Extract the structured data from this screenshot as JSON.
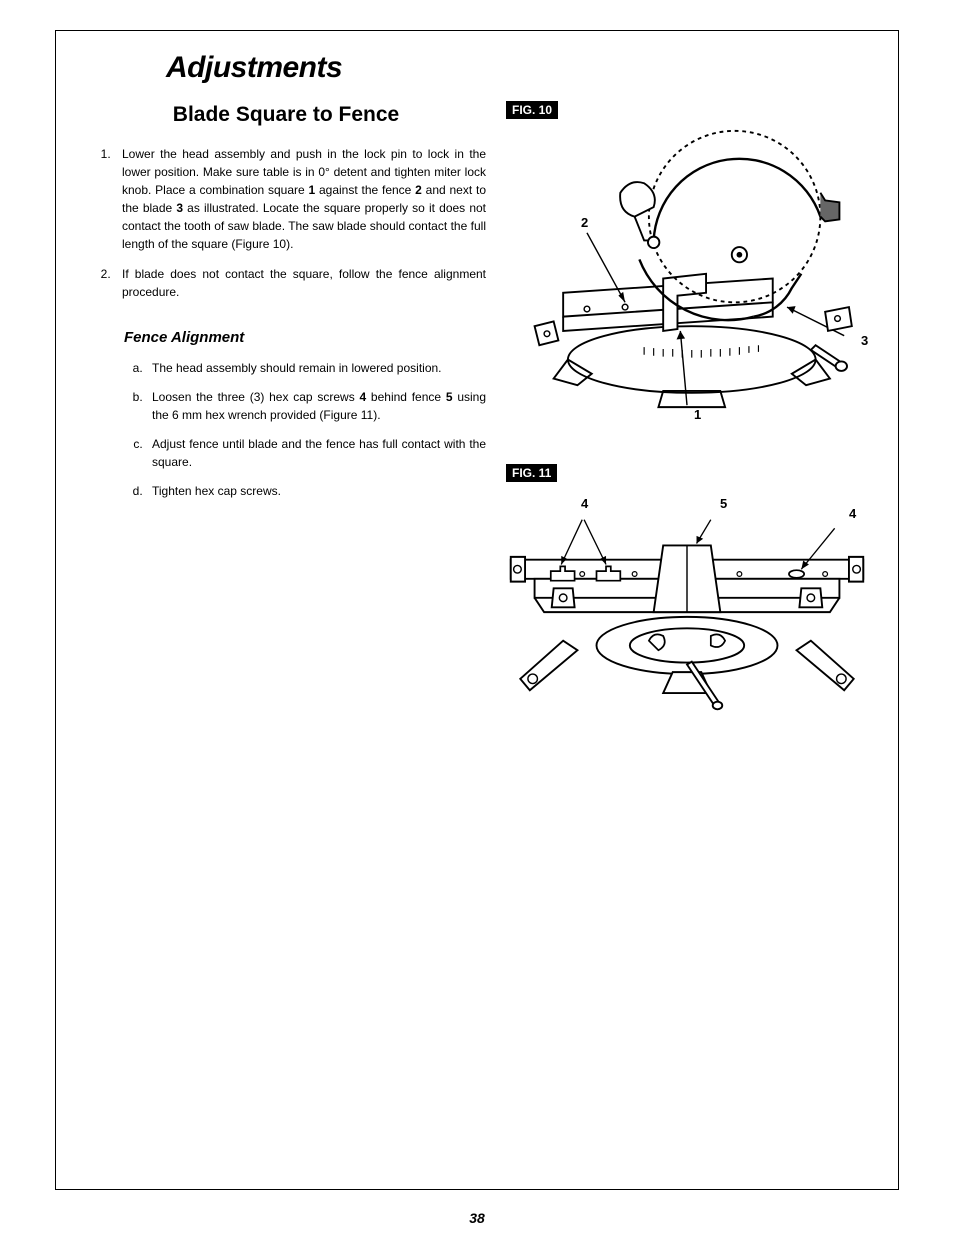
{
  "main_title": "Adjustments",
  "section_title": "Blade Square to Fence",
  "list_items": [
    "Lower the head assembly and push in the lock pin to lock in the lower position. Make sure table is in 0° detent and tighten miter lock knob. Place a combination square 1 against the fence 2 and next to the blade 3 as illustrated. Locate the square properly so it does not contact the tooth of saw blade. The saw blade should contact the full length of the square (Figure 10).",
    "If blade does not contact the square, follow the fence alignment procedure."
  ],
  "sub_title": "Fence Alignment",
  "sub_items": [
    "The head assembly should remain in lowered position.",
    "Loosen the three (3) hex cap screws 4 behind fence 5 using the 6 mm hex wrench provided (Figure 11).",
    "Adjust fence until blade and the fence has full contact with the square.",
    "Tighten hex cap screws."
  ],
  "fig10_label": "FIG. 10",
  "fig11_label": "FIG. 11",
  "fig10_callouts": {
    "c1": "1",
    "c2": "2",
    "c3": "3"
  },
  "fig11_callouts": {
    "c4a": "4",
    "c4b": "4",
    "c5": "5"
  },
  "page_number": "38",
  "colors": {
    "text": "#000000",
    "bg": "#ffffff",
    "fill_gray": "#666666"
  }
}
